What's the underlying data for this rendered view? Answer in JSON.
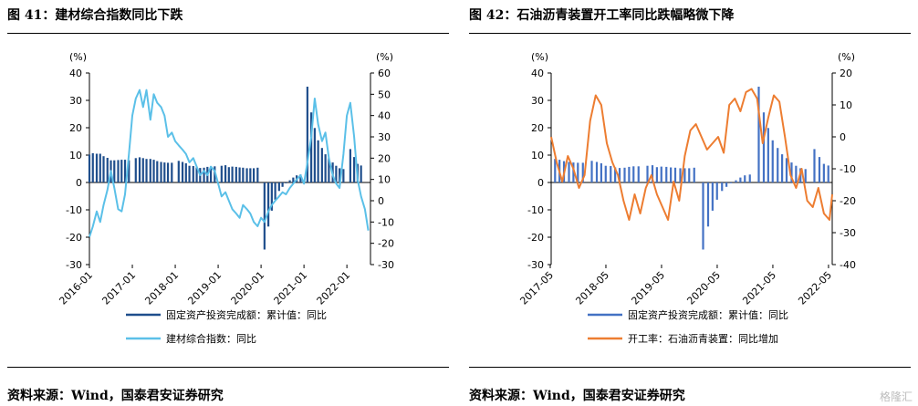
{
  "watermark": "格隆汇",
  "panels": [
    {
      "title": "图 41：建材综合指数同比下跌",
      "source": "资料来源：Wind，国泰君安证券研究",
      "chart_data": {
        "type": "bar+line",
        "left_axis": {
          "unit": "(%)",
          "ticks": [
            40,
            30,
            20,
            10,
            0,
            -10,
            -20,
            -30
          ],
          "range": [
            -30,
            40
          ]
        },
        "right_axis": {
          "unit": "(%)",
          "ticks": [
            60,
            50,
            40,
            30,
            20,
            10,
            0,
            -10,
            -20,
            -30
          ],
          "range": [
            -30,
            60
          ]
        },
        "x_labels": [
          "2016-01",
          "2017-01",
          "2018-01",
          "2019-01",
          "2020-01",
          "2021-01",
          "2022-01"
        ],
        "x_range": [
          2016.0,
          2022.55
        ],
        "series": [
          {
            "name": "固定资产投资完成额：累计值：同比",
            "type": "bar",
            "axis": "left",
            "color": "#1f4e8c",
            "x": [
              2016.0,
              2016.08,
              2016.17,
              2016.25,
              2016.33,
              2016.42,
              2016.5,
              2016.58,
              2016.67,
              2016.75,
              2016.83,
              2016.92,
              2017.08,
              2017.17,
              2017.25,
              2017.33,
              2017.42,
              2017.5,
              2017.58,
              2017.67,
              2017.75,
              2017.83,
              2017.92,
              2018.08,
              2018.17,
              2018.25,
              2018.33,
              2018.42,
              2018.5,
              2018.58,
              2018.67,
              2018.75,
              2018.83,
              2018.92,
              2019.08,
              2019.17,
              2019.25,
              2019.33,
              2019.42,
              2019.5,
              2019.58,
              2019.67,
              2019.75,
              2019.83,
              2019.92,
              2020.08,
              2020.17,
              2020.25,
              2020.33,
              2020.42,
              2020.5,
              2020.58,
              2020.67,
              2020.75,
              2020.83,
              2020.92,
              2021.08,
              2021.17,
              2021.25,
              2021.33,
              2021.42,
              2021.5,
              2021.58,
              2021.67,
              2021.75,
              2021.83,
              2021.92,
              2022.08,
              2022.17,
              2022.25,
              2022.33
            ],
            "values": [
              10.2,
              10.7,
              10.5,
              10.5,
              9.6,
              9.0,
              8.1,
              8.1,
              8.2,
              8.3,
              8.3,
              8.1,
              8.9,
              9.2,
              8.9,
              8.6,
              8.6,
              8.3,
              7.8,
              7.5,
              7.3,
              7.2,
              7.2,
              7.9,
              7.5,
              7.0,
              6.1,
              6.0,
              5.5,
              5.3,
              5.4,
              5.7,
              5.9,
              5.9,
              6.1,
              6.3,
              5.6,
              5.8,
              5.7,
              5.5,
              5.4,
              5.2,
              5.2,
              5.2,
              5.4,
              -24.5,
              -16.1,
              -10.3,
              -6.3,
              -3.1,
              -1.6,
              -0.3,
              0.8,
              1.8,
              2.6,
              2.9,
              35.0,
              25.6,
              19.9,
              15.4,
              12.6,
              10.3,
              8.9,
              7.3,
              6.1,
              5.2,
              4.9,
              12.2,
              9.3,
              6.8,
              6.2
            ]
          },
          {
            "name": "建材综合指数：同比",
            "type": "line",
            "axis": "right",
            "color": "#5bc0e8",
            "x": [
              2016.0,
              2016.08,
              2016.17,
              2016.25,
              2016.33,
              2016.42,
              2016.5,
              2016.58,
              2016.67,
              2016.75,
              2016.83,
              2016.92,
              2017.0,
              2017.08,
              2017.17,
              2017.25,
              2017.33,
              2017.42,
              2017.5,
              2017.58,
              2017.67,
              2017.75,
              2017.83,
              2017.92,
              2018.0,
              2018.08,
              2018.17,
              2018.25,
              2018.33,
              2018.42,
              2018.5,
              2018.58,
              2018.67,
              2018.75,
              2018.83,
              2018.92,
              2019.0,
              2019.08,
              2019.17,
              2019.25,
              2019.33,
              2019.42,
              2019.5,
              2019.58,
              2019.67,
              2019.75,
              2019.83,
              2019.92,
              2020.0,
              2020.08,
              2020.17,
              2020.25,
              2020.33,
              2020.42,
              2020.5,
              2020.58,
              2020.67,
              2020.75,
              2020.83,
              2020.92,
              2021.0,
              2021.08,
              2021.17,
              2021.25,
              2021.33,
              2021.42,
              2021.5,
              2021.58,
              2021.67,
              2021.75,
              2021.83,
              2021.92,
              2022.0,
              2022.08,
              2022.17,
              2022.25,
              2022.33,
              2022.42,
              2022.5
            ],
            "values": [
              -17,
              -12,
              -5,
              -10,
              -2,
              5,
              14,
              6,
              -4,
              -5,
              3,
              22,
              40,
              48,
              52,
              44,
              52,
              38,
              50,
              46,
              44,
              40,
              30,
              32,
              28,
              26,
              24,
              22,
              18,
              20,
              16,
              12,
              14,
              12,
              16,
              14,
              8,
              2,
              4,
              0,
              -4,
              -6,
              -8,
              -2,
              -4,
              -6,
              -10,
              -12,
              -8,
              -10,
              -5,
              -2,
              0,
              2,
              4,
              3,
              6,
              8,
              10,
              12,
              8,
              18,
              30,
              48,
              36,
              28,
              32,
              20,
              12,
              8,
              6,
              22,
              40,
              46,
              30,
              10,
              2,
              -4,
              -14
            ]
          }
        ]
      }
    },
    {
      "title": "图 42：石油沥青装置开工率同比跌幅略微下降",
      "source": "资料来源：Wind，国泰君安证券研究",
      "chart_data": {
        "type": "bar+line",
        "left_axis": {
          "unit": "(%)",
          "ticks": [
            40,
            30,
            20,
            10,
            0,
            -10,
            -20,
            -30
          ],
          "range": [
            -30,
            40
          ]
        },
        "right_axis": {
          "unit": "(%)",
          "ticks": [
            20,
            10,
            0,
            -10,
            -20,
            -30,
            -40
          ],
          "range": [
            -40,
            20
          ]
        },
        "x_labels": [
          "2017-05",
          "2018-05",
          "2019-05",
          "2020-05",
          "2021-05",
          "2022-05"
        ],
        "x_range": [
          2017.35,
          2022.4
        ],
        "series": [
          {
            "name": "固定资产投资完成额：累计值：同比",
            "type": "bar",
            "axis": "left",
            "color": "#4472c4",
            "x": [
              2017.42,
              2017.5,
              2017.58,
              2017.67,
              2017.75,
              2017.83,
              2017.92,
              2018.08,
              2018.17,
              2018.25,
              2018.33,
              2018.42,
              2018.5,
              2018.58,
              2018.67,
              2018.75,
              2018.83,
              2018.92,
              2019.08,
              2019.17,
              2019.25,
              2019.33,
              2019.42,
              2019.5,
              2019.58,
              2019.67,
              2019.75,
              2019.83,
              2019.92,
              2020.08,
              2020.17,
              2020.25,
              2020.33,
              2020.42,
              2020.5,
              2020.58,
              2020.67,
              2020.75,
              2020.83,
              2020.92,
              2021.08,
              2021.17,
              2021.25,
              2021.33,
              2021.42,
              2021.5,
              2021.58,
              2021.67,
              2021.75,
              2021.83,
              2021.92,
              2022.08,
              2022.17,
              2022.25,
              2022.33
            ],
            "values": [
              8.6,
              8.3,
              7.8,
              7.5,
              7.3,
              7.2,
              7.2,
              7.9,
              7.5,
              7.0,
              6.1,
              6.0,
              5.5,
              5.3,
              5.4,
              5.7,
              5.9,
              5.9,
              6.1,
              6.3,
              5.6,
              5.8,
              5.7,
              5.5,
              5.4,
              5.2,
              5.2,
              5.2,
              5.4,
              -24.5,
              -16.1,
              -10.3,
              -6.3,
              -3.1,
              -1.6,
              -0.3,
              0.8,
              1.8,
              2.6,
              2.9,
              35.0,
              25.6,
              19.9,
              15.4,
              12.6,
              10.3,
              8.9,
              7.3,
              6.1,
              5.2,
              4.9,
              12.2,
              9.3,
              6.8,
              6.2
            ]
          },
          {
            "name": "开工率：石油沥青装置：同比增加",
            "type": "line",
            "axis": "right",
            "color": "#ed7d31",
            "x": [
              2017.35,
              2017.45,
              2017.55,
              2017.65,
              2017.75,
              2017.85,
              2017.95,
              2018.05,
              2018.15,
              2018.25,
              2018.35,
              2018.45,
              2018.55,
              2018.65,
              2018.75,
              2018.85,
              2018.95,
              2019.05,
              2019.15,
              2019.25,
              2019.35,
              2019.45,
              2019.55,
              2019.65,
              2019.75,
              2019.85,
              2019.95,
              2020.05,
              2020.15,
              2020.25,
              2020.35,
              2020.45,
              2020.55,
              2020.65,
              2020.75,
              2020.85,
              2020.95,
              2021.05,
              2021.15,
              2021.25,
              2021.35,
              2021.45,
              2021.55,
              2021.65,
              2021.75,
              2021.85,
              2021.95,
              2022.05,
              2022.15,
              2022.25,
              2022.35,
              2022.4
            ],
            "values": [
              0,
              -8,
              -14,
              -6,
              -10,
              -16,
              -12,
              5,
              13,
              10,
              -2,
              -8,
              -12,
              -20,
              -26,
              -18,
              -24,
              -16,
              -12,
              -18,
              -22,
              -26,
              -14,
              -20,
              -6,
              2,
              4,
              0,
              -4,
              -2,
              0,
              -5,
              10,
              12,
              8,
              14,
              15,
              12,
              -2,
              6,
              13,
              11,
              0,
              -12,
              -16,
              -10,
              -20,
              -22,
              -16,
              -24,
              -26,
              -18
            ]
          }
        ]
      }
    }
  ]
}
